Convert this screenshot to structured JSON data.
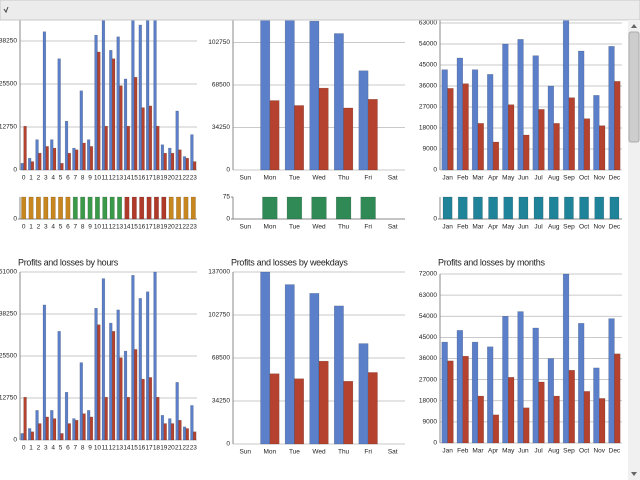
{
  "chart_data": [
    {
      "type": "bar",
      "title": "Profits and losses by hours",
      "categories": [
        "0",
        "1",
        "2",
        "3",
        "4",
        "5",
        "6",
        "7",
        "8",
        "9",
        "10",
        "11",
        "12",
        "13",
        "14",
        "15",
        "16",
        "17",
        "18",
        "19",
        "20",
        "21",
        "22",
        "23"
      ],
      "series": [
        {
          "color": "#5b7fc8",
          "values": [
            2000,
            3500,
            9000,
            41000,
            9000,
            33000,
            14500,
            6500,
            23500,
            9000,
            40000,
            49000,
            35500,
            39500,
            27000,
            50000,
            43000,
            45000,
            51000,
            7500,
            6500,
            17500,
            4000,
            10500
          ]
        },
        {
          "color": "#b5422f",
          "values": [
            13000,
            2500,
            5000,
            7000,
            6500,
            2000,
            5000,
            6000,
            8000,
            7000,
            35000,
            13000,
            33000,
            25000,
            13000,
            27500,
            18500,
            19000,
            13000,
            5000,
            5000,
            6000,
            3500,
            2500
          ]
        }
      ],
      "ylim": [
        0,
        51000
      ],
      "yticks": [
        0,
        12750,
        25500,
        38250,
        51000
      ],
      "grid": true
    },
    {
      "type": "bar",
      "title": "Profits and losses by weekdays",
      "categories": [
        "Sun",
        "Mon",
        "Tue",
        "Wed",
        "Thu",
        "Fri",
        "Sat"
      ],
      "series": [
        {
          "color": "#5b7fc8",
          "values": [
            0,
            137000,
            127000,
            120000,
            110000,
            80000,
            0
          ]
        },
        {
          "color": "#b5422f",
          "values": [
            0,
            56000,
            52000,
            66000,
            50000,
            57000,
            0
          ]
        }
      ],
      "ylim": [
        0,
        137000
      ],
      "yticks": [
        0,
        34250,
        68500,
        102750,
        137000
      ],
      "grid": true
    },
    {
      "type": "bar",
      "title": "Profits and losses by months",
      "categories": [
        "Jan",
        "Feb",
        "Mar",
        "Apr",
        "May",
        "Jun",
        "Jul",
        "Aug",
        "Sep",
        "Oct",
        "Nov",
        "Dec"
      ],
      "series": [
        {
          "color": "#5b7fc8",
          "values": [
            43000,
            48000,
            43000,
            41000,
            54000,
            56000,
            49000,
            36000,
            72000,
            51000,
            32000,
            53000
          ]
        },
        {
          "color": "#b5422f",
          "values": [
            35000,
            37000,
            20000,
            12000,
            28000,
            15000,
            26000,
            20000,
            31000,
            22000,
            19000,
            38000
          ]
        }
      ],
      "ylim": [
        0,
        72000
      ],
      "yticks": [
        0,
        9000,
        18000,
        27000,
        36000,
        45000,
        54000,
        63000,
        72000
      ],
      "grid": true
    },
    {
      "type": "strip",
      "categories": [
        "0",
        "1",
        "2",
        "3",
        "4",
        "5",
        "6",
        "7",
        "8",
        "9",
        "10",
        "11",
        "12",
        "13",
        "14",
        "15",
        "16",
        "17",
        "18",
        "19",
        "20",
        "21",
        "22",
        "23"
      ],
      "values": [
        75,
        75,
        75,
        75,
        75,
        75,
        75,
        75,
        75,
        75,
        75,
        75,
        75,
        75,
        75,
        75,
        75,
        75,
        75,
        75,
        75,
        75,
        75,
        75
      ],
      "colors": [
        "#c8861e",
        "#c8861e",
        "#c8861e",
        "#c8861e",
        "#c8861e",
        "#c8861e",
        "#c8861e",
        "#3a9a4a",
        "#3a9a4a",
        "#3a9a4a",
        "#3a9a4a",
        "#3a9a4a",
        "#3a9a4a",
        "#3a9a4a",
        "#b03a2a",
        "#b03a2a",
        "#b03a2a",
        "#b03a2a",
        "#b03a2a",
        "#b03a2a",
        "#c8861e",
        "#c8861e",
        "#c8861e",
        "#c8861e"
      ],
      "ylim": [
        0,
        75
      ],
      "yticks": [
        0
      ]
    },
    {
      "type": "strip",
      "categories": [
        "Sun",
        "Mon",
        "Tue",
        "Wed",
        "Thu",
        "Fri",
        "Sat"
      ],
      "values": [
        null,
        75,
        75,
        75,
        75,
        75,
        null
      ],
      "color": "#2f8a55",
      "ylim": [
        0,
        75
      ],
      "yticks": [
        0,
        75
      ]
    },
    {
      "type": "strip",
      "categories": [
        "Jan",
        "Feb",
        "Mar",
        "Apr",
        "May",
        "Jun",
        "Jul",
        "Aug",
        "Sep",
        "Oct",
        "Nov",
        "Dec"
      ],
      "values": [
        75,
        75,
        75,
        75,
        75,
        75,
        75,
        75,
        75,
        75,
        75,
        75
      ],
      "color": "#1f8399",
      "ylim": [
        0,
        75
      ],
      "yticks": [
        0
      ]
    }
  ]
}
